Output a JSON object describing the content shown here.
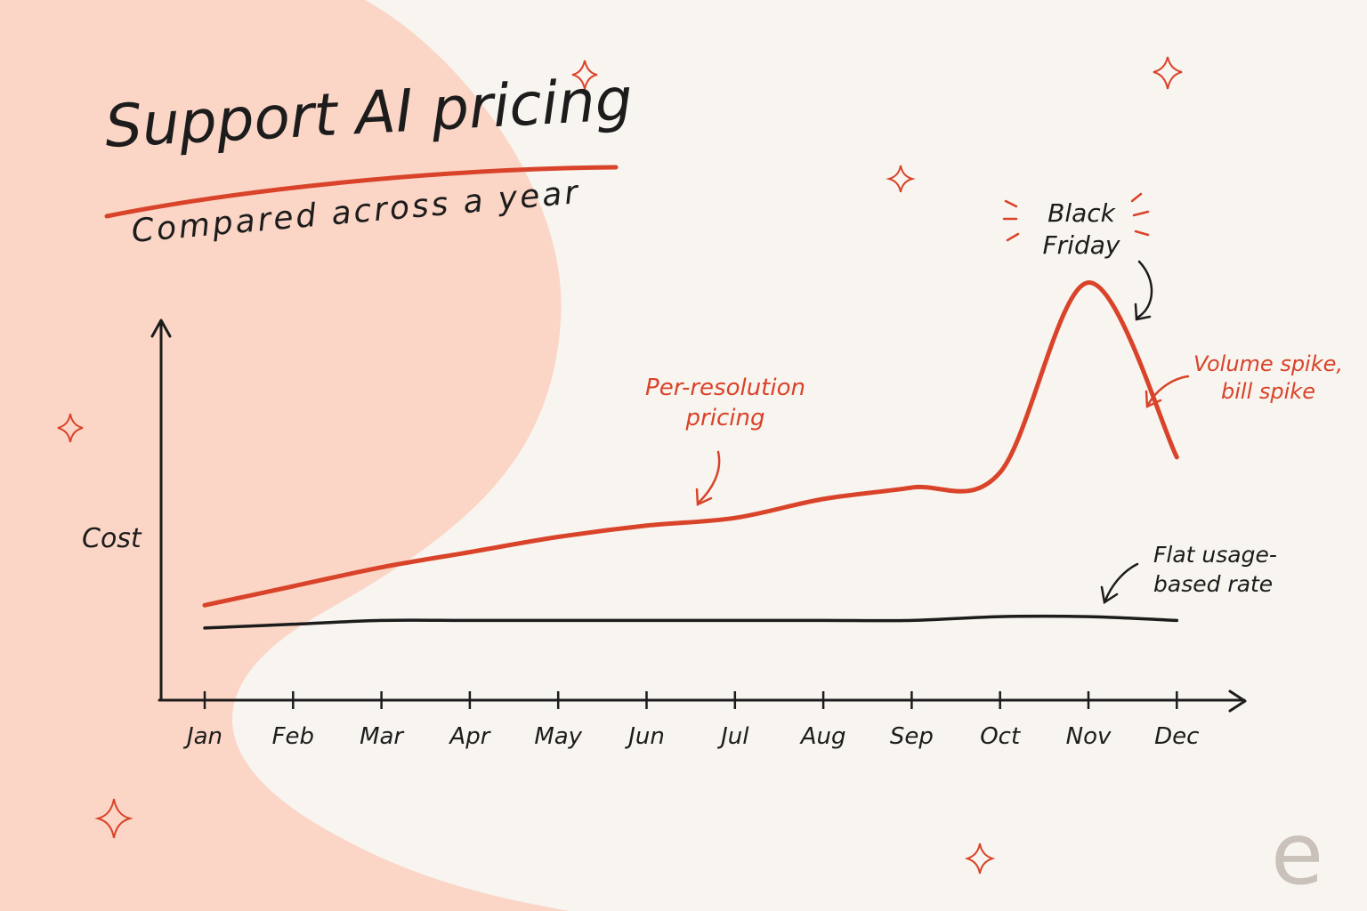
{
  "chart_data": {
    "type": "line",
    "title": "Support AI pricing",
    "subtitle": "Compared across a year",
    "y_label": "Cost",
    "categories": [
      "Jan",
      "Feb",
      "Mar",
      "Apr",
      "May",
      "Jun",
      "Jul",
      "Aug",
      "Sep",
      "Oct",
      "Nov",
      "Dec"
    ],
    "series": [
      {
        "name": "Per-resolution pricing",
        "color": "#d9432a",
        "values": [
          25,
          30,
          35,
          39,
          43,
          46,
          48,
          53,
          56,
          60,
          110,
          64
        ]
      },
      {
        "name": "Flat usage-based rate",
        "color": "#1c1c1c",
        "values": [
          19,
          20,
          21,
          21,
          21,
          21,
          21,
          21,
          21,
          22,
          22,
          21
        ]
      }
    ],
    "ylim": [
      0,
      120
    ],
    "annotations": [
      "Black Friday",
      "Volume spike, bill spike"
    ],
    "watermark": "e"
  }
}
